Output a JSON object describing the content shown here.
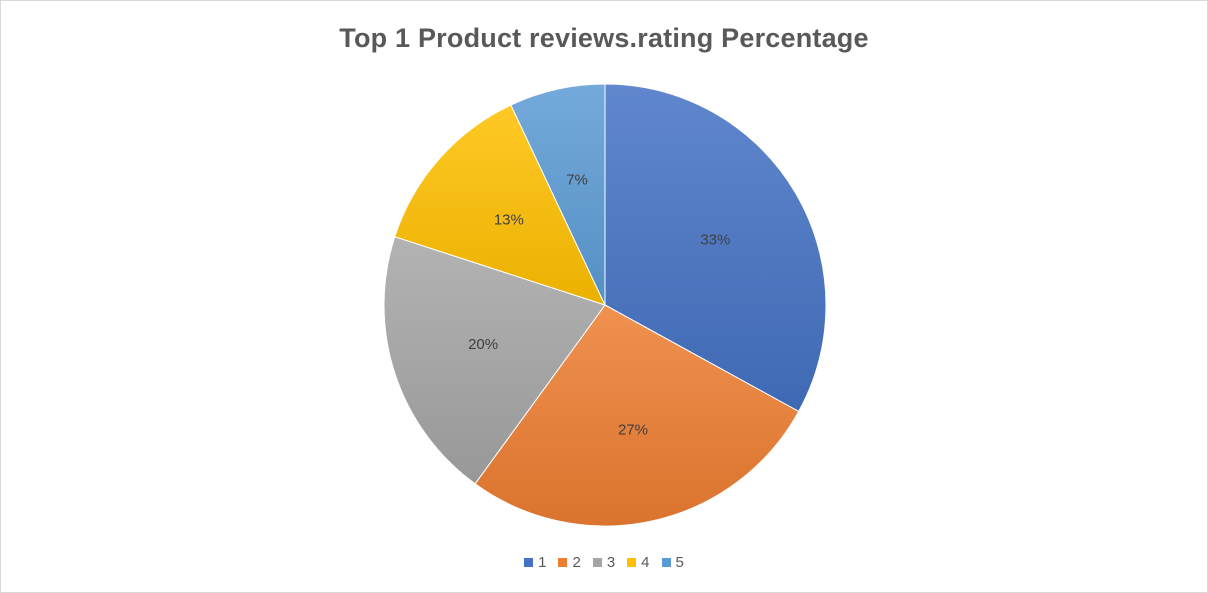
{
  "chart_data": {
    "type": "pie",
    "title": "Top 1 Product reviews.rating Percentage",
    "categories": [
      "1",
      "2",
      "3",
      "4",
      "5"
    ],
    "values": [
      33,
      27,
      20,
      13,
      7
    ],
    "data_labels": [
      "33%",
      "27%",
      "20%",
      "13%",
      "7%"
    ],
    "colors": [
      "#4472c4",
      "#ed7d31",
      "#a5a5a5",
      "#ffc000",
      "#5b9bd5"
    ],
    "start_angle": "12 o'clock",
    "direction": "clockwise",
    "legend": "bottom"
  }
}
